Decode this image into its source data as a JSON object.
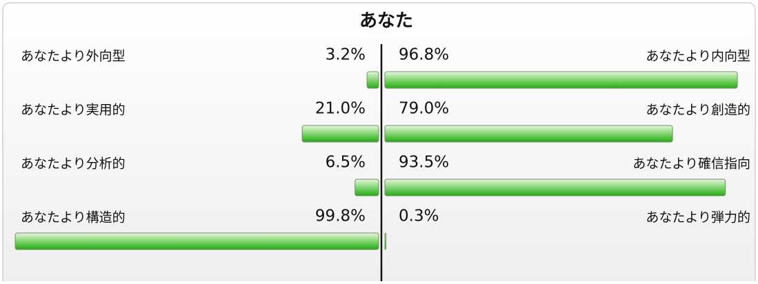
{
  "chart_data": {
    "type": "diverging_bar",
    "title": "あなた",
    "left_categories": [
      "あなたより外向型",
      "あなたより実用的",
      "あなたより分析的",
      "あなたより構造的"
    ],
    "right_categories": [
      "あなたより内向型",
      "あなたより創造的",
      "あなたより確信指向",
      "あなたより弾力的"
    ],
    "series": [
      {
        "color": "#4fc23c",
        "values": [
          3.2,
          21.0,
          6.5,
          99.8
        ],
        "value_labels": [
          "3.2%",
          "21.0%",
          "6.5%",
          "99.8%"
        ]
      },
      {
        "color": "#4fc23c",
        "values": [
          96.8,
          79.0,
          93.5,
          0.3
        ],
        "value_labels": [
          "96.8%",
          "79.0%",
          "93.5%",
          "0.3%"
        ]
      }
    ],
    "xlim": [
      0,
      100
    ]
  }
}
